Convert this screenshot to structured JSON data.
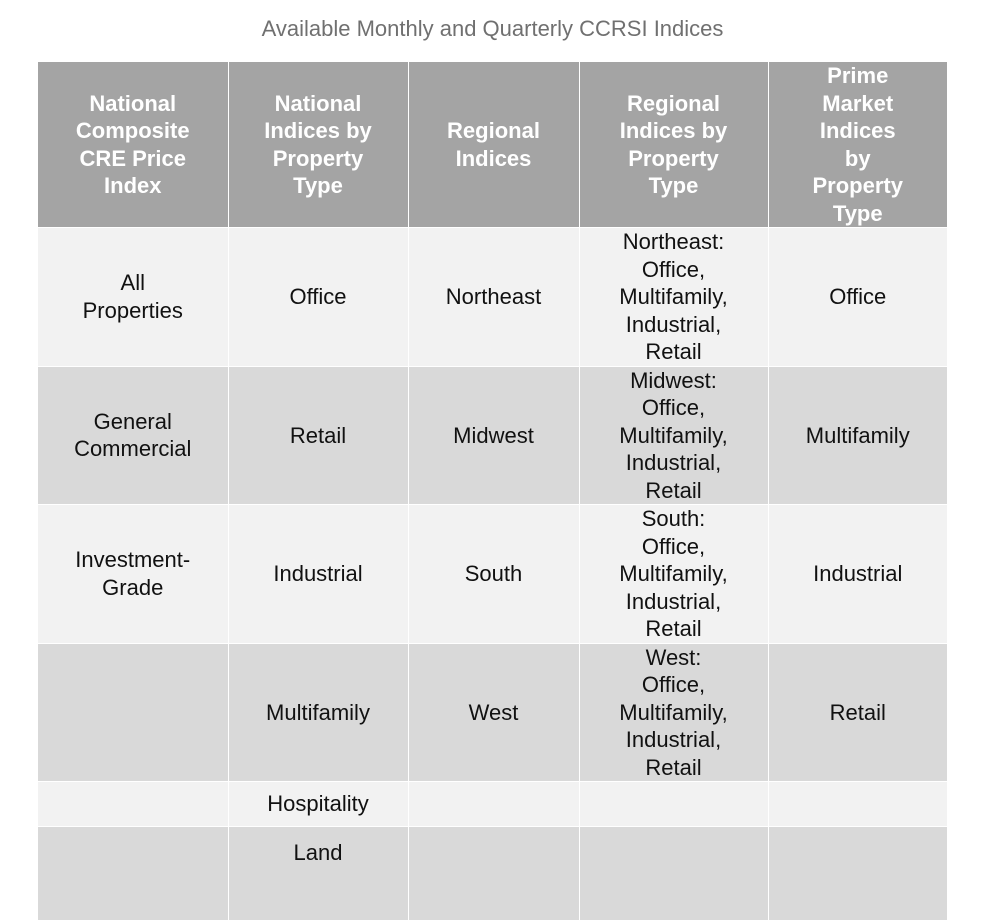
{
  "title": "Available Monthly and Quarterly CCRSI Indices",
  "table": {
    "headers": [
      "National\nComposite\nCRE Price\nIndex",
      "National\nIndices by\nProperty\nType",
      "Regional\nIndices",
      "Regional\nIndices by\nProperty\nType",
      "Prime\nMarket\nIndices\nby\nProperty\nType"
    ],
    "rows": [
      [
        "All\nProperties",
        "Office",
        "Northeast",
        "Northeast:\nOffice,\nMultifamily,\nIndustrial,\nRetail",
        "Office"
      ],
      [
        "General\nCommercial",
        "Retail",
        "Midwest",
        "Midwest:\nOffice,\nMultifamily,\nIndustrial,\nRetail",
        "Multifamily"
      ],
      [
        "Investment-\nGrade",
        "Industrial",
        "South",
        "South:\nOffice,\nMultifamily,\nIndustrial,\nRetail",
        "Industrial"
      ],
      [
        "",
        "Multifamily",
        "West",
        "West:\nOffice,\nMultifamily,\nIndustrial,\nRetail",
        "Retail"
      ],
      [
        "",
        "Hospitality",
        "",
        "",
        ""
      ],
      [
        "",
        "Land",
        "",
        "",
        ""
      ]
    ]
  },
  "colors": {
    "header_bg": "#a4a4a4",
    "row_light": "#f2f2f2",
    "row_dark": "#d9d9d9",
    "title_text": "#707070"
  }
}
